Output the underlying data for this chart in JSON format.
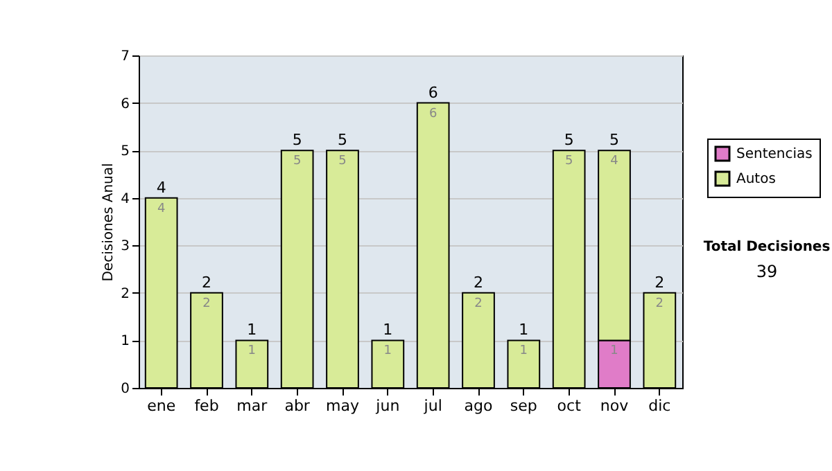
{
  "chart_data": {
    "type": "bar",
    "stacked": true,
    "ylabel": "Decisiones Anual",
    "categories": [
      "ene",
      "feb",
      "mar",
      "abr",
      "may",
      "jun",
      "jul",
      "ago",
      "sep",
      "oct",
      "nov",
      "dic"
    ],
    "series": [
      {
        "name": "Sentencias",
        "color": "#e07cc8",
        "values": [
          null,
          null,
          null,
          null,
          null,
          null,
          null,
          null,
          null,
          null,
          1,
          null
        ],
        "value_labels": [
          null,
          null,
          null,
          null,
          null,
          null,
          null,
          null,
          null,
          null,
          "1",
          null
        ]
      },
      {
        "name": "Autos",
        "color": "#d8eb98",
        "values": [
          4,
          2,
          1,
          5,
          5,
          1,
          6,
          2,
          1,
          5,
          4,
          2
        ],
        "value_labels": [
          "4",
          "2",
          "1",
          "5",
          "5",
          "1",
          "6",
          "2",
          "1",
          "5",
          "4",
          "2"
        ]
      }
    ],
    "totals": [
      "4",
      "2",
      "1",
      "5",
      "5",
      "1",
      "6",
      "2",
      "1",
      "5",
      "5",
      "2"
    ],
    "ylim": [
      0,
      7
    ],
    "yticks": [
      0,
      1,
      2,
      3,
      4,
      5,
      6,
      7
    ],
    "grid": "y",
    "legend": "right",
    "annotations": [
      "Total Decisiones",
      "39"
    ]
  }
}
